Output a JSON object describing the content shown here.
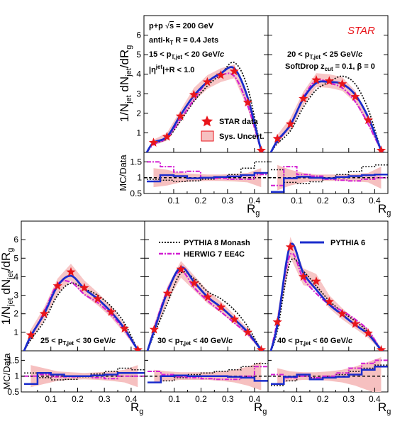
{
  "colors": {
    "star": "#e8151b",
    "sys_fill": "#f6c0c0",
    "sys_edge": "#e8151b",
    "pythia6": "#1a2ccc",
    "herwig": "#d21fd2",
    "monash": "#111111"
  },
  "labels": {
    "y_main": "1/N_jet dN_jet/dR_g",
    "y_ratio": "MC/Data",
    "x": "R_g",
    "star_logo": "STAR",
    "collision": "p+p √s = 200 GeV",
    "jets": "anti-k_T R = 0.4 Jets",
    "eta_cut": "|η^jet|+R < 1.0",
    "softdrop": "SoftDrop z_cut = 0.1, β = 0"
  },
  "legend": {
    "star_data": "STAR data",
    "sys": "Sys. Uncert.",
    "monash": "PYTHIA 8 Monash",
    "herwig": "HERWIG 7 EE4C",
    "pythia6": "PYTHIA 6"
  },
  "chart_data": {
    "type": "line",
    "xlabel": "R_g",
    "ylabel": "1/N_jet dN_jet/dR_g",
    "ratio_ylabel": "MC/Data",
    "xlim": [
      0,
      0.44
    ],
    "ylim": [
      0,
      7
    ],
    "ratio_ylim": [
      0.5,
      1.8
    ],
    "x_ticks": [
      "0.1",
      "0.2",
      "0.3",
      "0.4"
    ],
    "y_ticks": [
      "1",
      "2",
      "3",
      "4",
      "5",
      "6"
    ],
    "ratio_ticks": [
      "0.5",
      "1",
      "1.5"
    ],
    "panels": [
      {
        "pt_range": "15 < p_T,jet < 20 GeV/c",
        "data_x": [
          0.025,
          0.075,
          0.125,
          0.175,
          0.225,
          0.275,
          0.325,
          0.375,
          0.425
        ],
        "data_y": [
          0.5,
          0.8,
          1.85,
          2.95,
          3.6,
          3.95,
          4.15,
          2.55,
          0.1
        ],
        "sys": [
          0.15,
          0.2,
          0.3,
          0.35,
          0.35,
          0.35,
          0.35,
          0.3,
          0.1
        ],
        "pythia6_y": [
          0.5,
          0.8,
          1.9,
          2.9,
          3.6,
          4.05,
          4.3,
          2.8,
          0.1
        ],
        "herwig_y": [
          0.4,
          0.75,
          1.7,
          2.7,
          3.6,
          3.95,
          3.9,
          2.4,
          0.1
        ],
        "monash_y": [
          0.45,
          0.7,
          1.6,
          2.6,
          3.4,
          4.0,
          4.6,
          3.3,
          0.1
        ],
        "ratio_pythia6": [
          0.88,
          1.08,
          1.05,
          0.98,
          1.0,
          1.02,
          1.04,
          1.08,
          1.15
        ],
        "ratio_herwig": [
          1.5,
          1.35,
          1.18,
          1.2,
          1.0,
          0.98,
          0.95,
          0.95,
          1.1
        ],
        "ratio_monash": [
          0.95,
          0.92,
          0.88,
          0.9,
          0.95,
          1.02,
          1.1,
          1.3,
          1.5
        ],
        "ratio_sys": [
          0.3,
          0.25,
          0.15,
          0.12,
          0.1,
          0.1,
          0.12,
          0.15,
          0.3
        ]
      },
      {
        "pt_range": "20 < p_T,jet < 25 GeV/c",
        "data_x": [
          0.025,
          0.075,
          0.125,
          0.175,
          0.225,
          0.275,
          0.325,
          0.375,
          0.425
        ],
        "data_y": [
          0.7,
          1.45,
          2.75,
          3.7,
          3.65,
          3.5,
          2.85,
          1.65,
          0.1
        ],
        "sys": [
          0.2,
          0.3,
          0.35,
          0.35,
          0.35,
          0.35,
          0.3,
          0.25,
          0.1
        ],
        "pythia6_y": [
          0.6,
          1.4,
          2.75,
          3.55,
          3.6,
          3.5,
          2.95,
          1.8,
          0.1
        ],
        "herwig_y": [
          0.55,
          1.4,
          2.8,
          3.7,
          3.55,
          3.3,
          2.6,
          1.45,
          0.1
        ],
        "monash_y": [
          0.45,
          1.1,
          2.3,
          3.2,
          3.6,
          3.9,
          3.5,
          2.2,
          0.1
        ],
        "ratio_pythia6": [
          0.55,
          0.98,
          1.03,
          1.0,
          0.98,
          1.02,
          1.05,
          1.08,
          1.1
        ],
        "ratio_herwig": [
          0.75,
          1.35,
          1.1,
          1.05,
          0.95,
          0.92,
          0.9,
          0.95,
          1.0
        ],
        "ratio_monash": [
          1.25,
          0.85,
          0.82,
          0.87,
          0.98,
          1.1,
          1.2,
          1.35,
          1.4
        ],
        "ratio_sys": [
          0.4,
          0.25,
          0.15,
          0.1,
          0.1,
          0.1,
          0.12,
          0.15,
          0.35
        ]
      },
      {
        "pt_range": "25 < p_T,jet < 30 GeV/c",
        "data_x": [
          0.025,
          0.075,
          0.125,
          0.175,
          0.225,
          0.275,
          0.325,
          0.375,
          0.425
        ],
        "data_y": [
          0.85,
          2.0,
          3.5,
          4.25,
          3.4,
          2.8,
          2.1,
          1.2,
          0.05
        ],
        "sys": [
          0.3,
          0.35,
          0.4,
          0.45,
          0.4,
          0.35,
          0.3,
          0.25,
          0.1
        ],
        "pythia6_y": [
          0.8,
          2.0,
          3.5,
          4.05,
          3.35,
          2.8,
          2.1,
          1.2,
          0.05
        ],
        "herwig_y": [
          0.75,
          2.1,
          3.6,
          3.7,
          3.05,
          2.6,
          1.95,
          1.1,
          0.05
        ],
        "monash_y": [
          0.6,
          1.6,
          3.0,
          3.65,
          3.35,
          3.0,
          2.4,
          1.5,
          0.05
        ],
        "ratio_pythia6": [
          0.75,
          1.1,
          1.05,
          1.0,
          1.0,
          1.02,
          1.05,
          1.1,
          1.1
        ],
        "ratio_herwig": [
          1.0,
          1.05,
          0.98,
          0.98,
          1.0,
          0.95,
          0.92,
          1.0,
          1.0
        ],
        "ratio_monash": [
          1.1,
          0.95,
          0.88,
          0.9,
          0.98,
          1.07,
          1.15,
          1.25,
          1.2
        ],
        "ratio_sys": [
          0.35,
          0.25,
          0.15,
          0.12,
          0.1,
          0.12,
          0.15,
          0.2,
          0.35
        ]
      },
      {
        "pt_range": "30 < p_T,jet < 40 GeV/c",
        "data_x": [
          0.025,
          0.075,
          0.125,
          0.175,
          0.225,
          0.275,
          0.325,
          0.375,
          0.425
        ],
        "data_y": [
          1.15,
          3.1,
          4.4,
          3.65,
          2.9,
          2.35,
          1.7,
          1.0,
          0.05
        ],
        "sys": [
          0.3,
          0.4,
          0.45,
          0.4,
          0.35,
          0.3,
          0.25,
          0.2,
          0.1
        ],
        "pythia6_y": [
          1.1,
          3.2,
          4.5,
          3.7,
          2.9,
          2.35,
          1.7,
          1.0,
          0.05
        ],
        "herwig_y": [
          1.2,
          3.3,
          4.3,
          3.4,
          2.7,
          2.1,
          1.5,
          0.9,
          0.05
        ],
        "monash_y": [
          0.9,
          2.6,
          4.2,
          3.9,
          3.2,
          2.8,
          2.2,
          1.3,
          0.05
        ],
        "ratio_pythia6": [
          0.8,
          1.0,
          1.02,
          1.0,
          1.0,
          1.0,
          0.98,
          0.95,
          0.85
        ],
        "ratio_herwig": [
          1.15,
          1.05,
          0.98,
          0.95,
          0.92,
          0.9,
          0.9,
          1.0,
          1.3
        ],
        "ratio_monash": [
          0.8,
          0.85,
          0.95,
          1.05,
          1.1,
          1.15,
          1.2,
          1.3,
          1.4
        ],
        "ratio_sys": [
          0.2,
          0.15,
          0.12,
          0.12,
          0.12,
          0.15,
          0.2,
          0.3,
          0.45
        ]
      },
      {
        "pt_range": "40 < p_T,jet < 60 GeV/c",
        "data_x": [
          0.025,
          0.075,
          0.125,
          0.175,
          0.225,
          0.275,
          0.325,
          0.375,
          0.425
        ],
        "data_y": [
          1.55,
          5.6,
          4.0,
          3.75,
          2.65,
          2.0,
          1.45,
          0.95,
          0.05
        ],
        "sys": [
          0.4,
          0.55,
          0.45,
          0.4,
          0.35,
          0.3,
          0.25,
          0.25,
          0.1
        ],
        "pythia6_y": [
          1.4,
          5.7,
          4.2,
          3.3,
          2.5,
          1.95,
          1.4,
          0.9,
          0.05
        ],
        "herwig_y": [
          1.6,
          5.2,
          3.9,
          3.1,
          2.5,
          2.15,
          1.7,
          1.1,
          0.05
        ],
        "monash_y": [
          1.1,
          4.8,
          4.3,
          3.5,
          2.7,
          2.1,
          1.6,
          1.0,
          0.05
        ],
        "ratio_pythia6": [
          0.75,
          0.98,
          1.05,
          0.9,
          0.95,
          0.98,
          1.05,
          1.2,
          1.3
        ],
        "ratio_herwig": [
          1.05,
          0.95,
          1.0,
          0.95,
          1.0,
          1.1,
          1.25,
          1.4,
          1.5
        ],
        "ratio_monash": [
          0.7,
          0.85,
          1.05,
          0.95,
          1.0,
          1.05,
          1.15,
          1.25,
          1.35
        ],
        "ratio_sys": [
          0.25,
          0.15,
          0.12,
          0.12,
          0.15,
          0.2,
          0.3,
          0.45,
          0.6
        ]
      }
    ]
  }
}
